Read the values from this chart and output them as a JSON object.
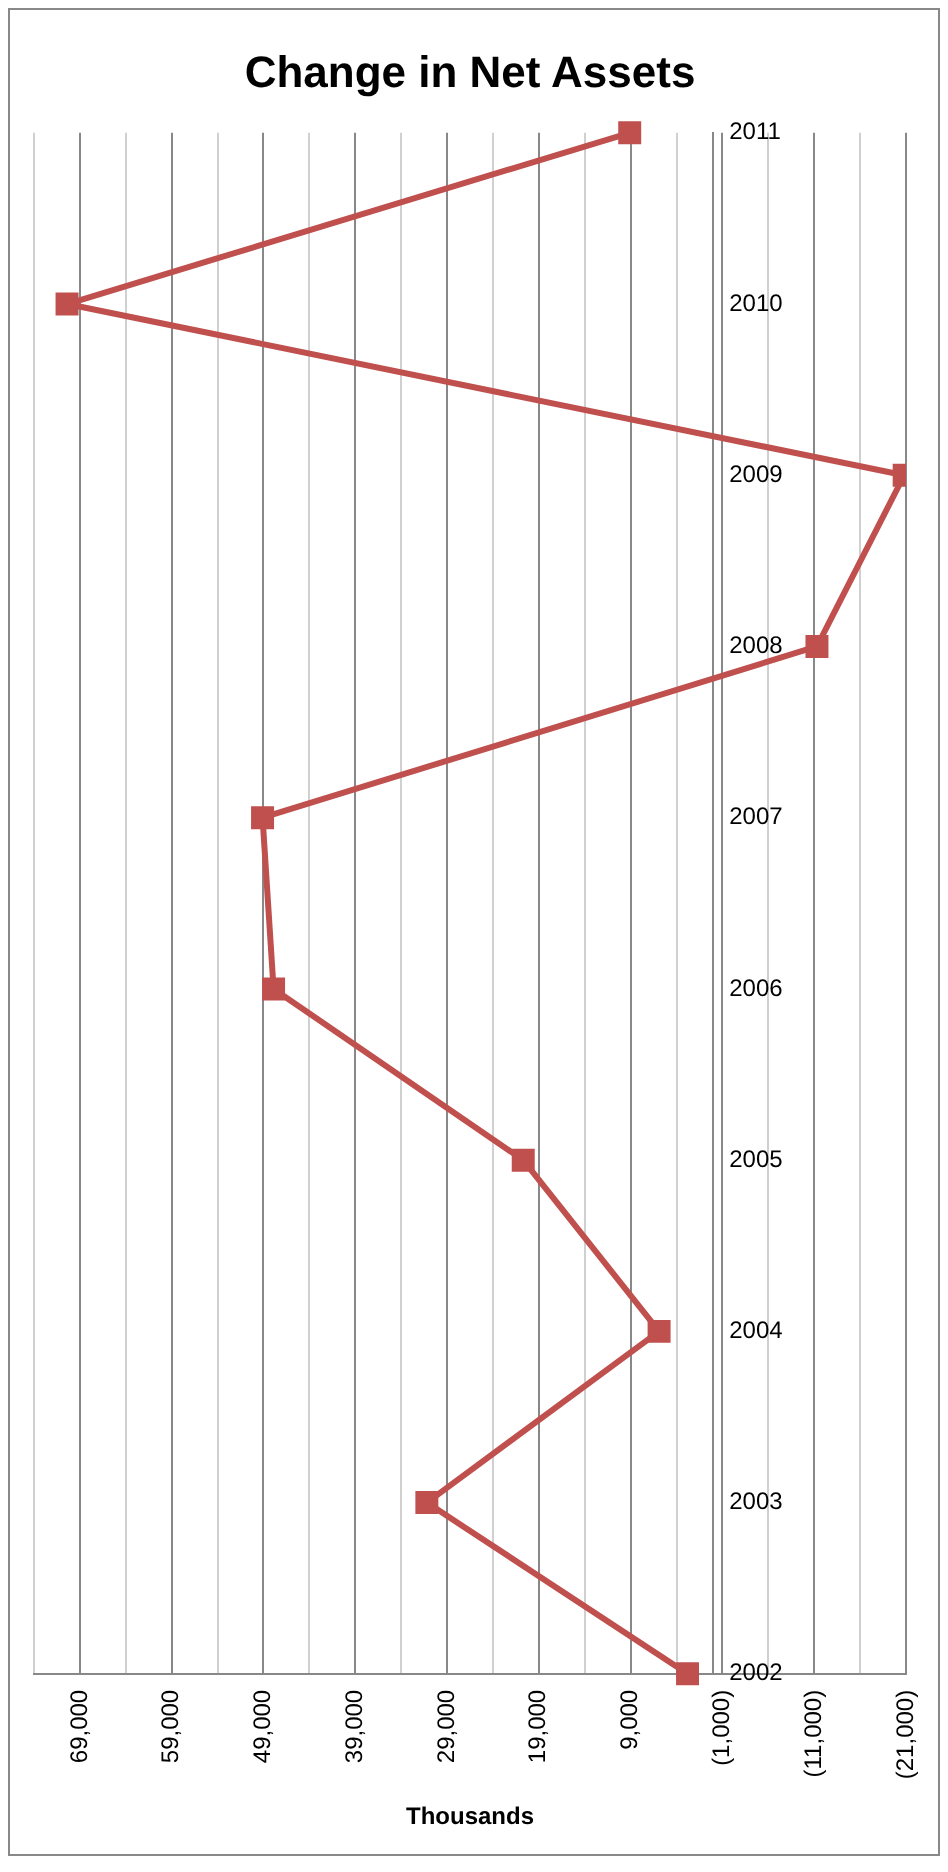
{
  "chart_data": {
    "type": "line",
    "orientation": "horizontal",
    "title": "Change in Net Assets",
    "xlabel": "Thousands",
    "categories": [
      "2011",
      "2010",
      "2009",
      "2008",
      "2007",
      "2006",
      "2005",
      "2004",
      "2003",
      "2002"
    ],
    "series": [
      {
        "color": "#c0504d",
        "values": [
          9100,
          70400,
          -20800,
          -11300,
          49100,
          47900,
          20700,
          5900,
          31200,
          2800
        ]
      }
    ],
    "xlim": [
      74000,
      -21000
    ],
    "xticks": [
      {
        "value": -21000,
        "label": "(21,000)"
      },
      {
        "value": -16000,
        "label": null
      },
      {
        "value": -11000,
        "label": "(11,000)"
      },
      {
        "value": -6000,
        "label": null
      },
      {
        "value": -1000,
        "label": "(1,000)"
      },
      {
        "value": 4000,
        "label": null
      },
      {
        "value": 9000,
        "label": "9,000"
      },
      {
        "value": 14000,
        "label": null
      },
      {
        "value": 19000,
        "label": "19,000"
      },
      {
        "value": 24000,
        "label": null
      },
      {
        "value": 29000,
        "label": "29,000"
      },
      {
        "value": 34000,
        "label": null
      },
      {
        "value": 39000,
        "label": "39,000"
      },
      {
        "value": 44000,
        "label": null
      },
      {
        "value": 49000,
        "label": "49,000"
      },
      {
        "value": 54000,
        "label": null
      },
      {
        "value": 59000,
        "label": "59,000"
      },
      {
        "value": 64000,
        "label": null
      },
      {
        "value": 69000,
        "label": "69,000"
      },
      {
        "value": 74000,
        "label": null
      }
    ],
    "grid": "x",
    "legend": false,
    "marker": "square",
    "line_style": "solid"
  }
}
